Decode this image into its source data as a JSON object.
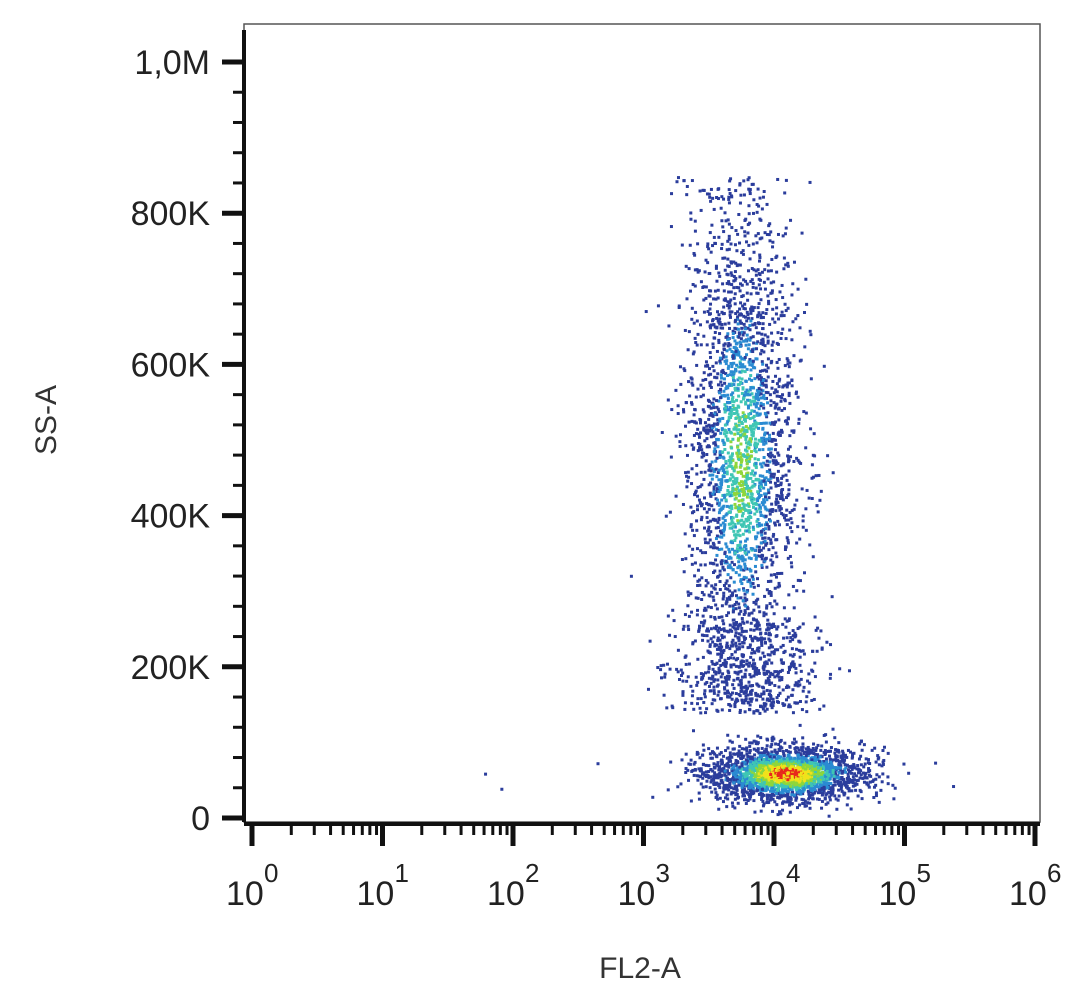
{
  "chart_data": {
    "type": "scatter",
    "xlabel": "FL2-A",
    "ylabel": "SS-A",
    "x_scale": "log",
    "y_scale": "linear",
    "xlim": [
      1,
      1000000
    ],
    "ylim": [
      -10000,
      1060000
    ],
    "x_ticks": [
      {
        "value": 1,
        "base": "10",
        "exp": "0"
      },
      {
        "value": 10,
        "base": "10",
        "exp": "1"
      },
      {
        "value": 100,
        "base": "10",
        "exp": "2"
      },
      {
        "value": 1000,
        "base": "10",
        "exp": "3"
      },
      {
        "value": 10000,
        "base": "10",
        "exp": "4"
      },
      {
        "value": 100000,
        "base": "10",
        "exp": "5"
      },
      {
        "value": 1000000,
        "base": "10",
        "exp": "6"
      }
    ],
    "y_ticks": [
      {
        "value": 0,
        "label": "0"
      },
      {
        "value": 200000,
        "label": "200K"
      },
      {
        "value": 400000,
        "label": "400K"
      },
      {
        "value": 600000,
        "label": "600K"
      },
      {
        "value": 800000,
        "label": "800K"
      },
      {
        "value": 1000000,
        "label": "1,0M"
      }
    ],
    "grid": false,
    "colormap": "density (blue → cyan → green → yellow → red)",
    "populations": [
      {
        "x_center": 5500,
        "y_center": 470000,
        "x_range": [
          1500,
          25000
        ],
        "y_range": [
          150000,
          850000
        ],
        "density": "medium"
      },
      {
        "x_center": 12000,
        "y_center": 60000,
        "x_range": [
          1000,
          80000
        ],
        "y_range": [
          30000,
          120000
        ],
        "density": "high"
      }
    ],
    "outliers": [
      {
        "x": 60,
        "y": 60000
      },
      {
        "x": 80,
        "y": 40000
      }
    ]
  },
  "colors": {
    "low": "#2b3d9c",
    "mid_low": "#2a8bd2",
    "mid": "#3fc6b4",
    "mid_high": "#8fd63a",
    "high": "#f0e21b",
    "peak": "#e8281c",
    "axis": "#111111"
  }
}
